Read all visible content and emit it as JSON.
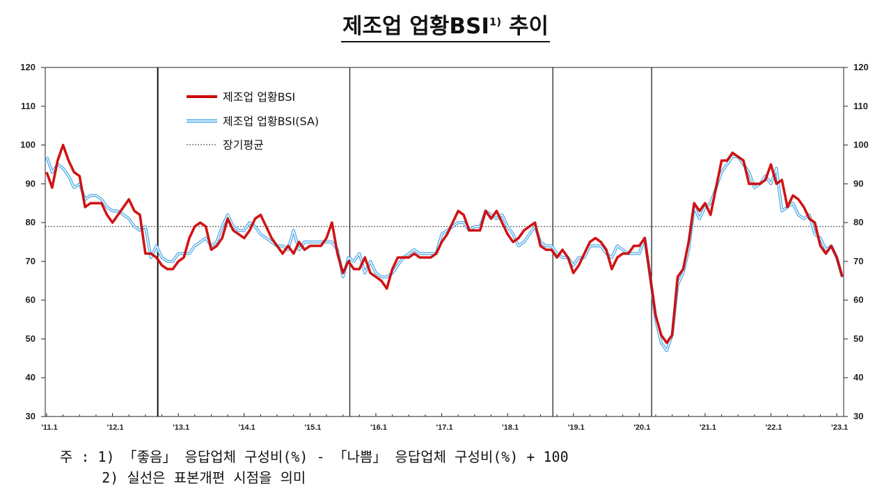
{
  "title": {
    "main": "제조업 업황BSI",
    "superscript": "1)",
    "suffix": " 추이"
  },
  "notes": {
    "line1": "주 : 1) 「좋음」 응답업체 구성비(%) - 「나쁨」 응답업체 구성비(%) + 100",
    "line2": "     2) 실선은 표본개편 시점을 의미"
  },
  "chart_data": {
    "type": "line",
    "title": "제조업 업황BSI 추이",
    "xlabel": "",
    "ylabel": "",
    "ylim": [
      30,
      120
    ],
    "yticks": [
      30,
      40,
      50,
      60,
      70,
      80,
      90,
      100,
      110,
      120
    ],
    "secondary_y": true,
    "x_range": [
      "'11.1",
      "'23.1"
    ],
    "x_ticks": [
      "'11.1",
      "'12.1",
      "'13.1",
      "'14.1",
      "'15.1",
      "'16.1",
      "'17.1",
      "'18.1",
      "'19.1",
      "'20.1",
      "'21.1",
      "'22.1",
      "'23.1"
    ],
    "legend_position": "top-left",
    "grid": false,
    "reference_line": {
      "name": "장기평균",
      "value": 79,
      "style": "dotted",
      "color": "#333333"
    },
    "vertical_lines_label": "표본개편 시점",
    "vertical_lines_x_month_index": [
      20,
      55,
      92,
      110
    ],
    "series": [
      {
        "name": "제조업 업황BSI",
        "color": "#cc0000",
        "style": "thick",
        "values": [
          93,
          89,
          96,
          100,
          96,
          93,
          92,
          84,
          85,
          85,
          85,
          82,
          80,
          82,
          84,
          86,
          83,
          82,
          72,
          72,
          71,
          69,
          68,
          68,
          70,
          71,
          76,
          79,
          80,
          79,
          73,
          74,
          76,
          81,
          78,
          77,
          76,
          78,
          81,
          82,
          79,
          76,
          74,
          72,
          74,
          72,
          75,
          73,
          74,
          74,
          74,
          76,
          80,
          72,
          67,
          70,
          68,
          68,
          71,
          67,
          66,
          65,
          63,
          68,
          71,
          71,
          71,
          72,
          71,
          71,
          71,
          72,
          75,
          77,
          80,
          83,
          82,
          78,
          78,
          78,
          83,
          81,
          83,
          80,
          77,
          75,
          76,
          78,
          79,
          80,
          74,
          73,
          73,
          71,
          73,
          71,
          67,
          69,
          72,
          75,
          76,
          75,
          73,
          68,
          71,
          72,
          72,
          74,
          74,
          76,
          66,
          56,
          51,
          49,
          51,
          66,
          68,
          75,
          85,
          83,
          85,
          82,
          89,
          96,
          96,
          98,
          97,
          96,
          90,
          90,
          90,
          91,
          95,
          90,
          91,
          84,
          87,
          86,
          84,
          81,
          80,
          74,
          72,
          74,
          71,
          66
        ]
      },
      {
        "name": "제조업 업황BSI(SA)",
        "color": "#5aaee6",
        "style": "double",
        "values": [
          97,
          93,
          95,
          94,
          92,
          89,
          90,
          86,
          87,
          87,
          86,
          84,
          83,
          83,
          82,
          81,
          79,
          78,
          79,
          71,
          74,
          71,
          70,
          70,
          72,
          72,
          72,
          74,
          75,
          76,
          74,
          75,
          79,
          82,
          79,
          78,
          78,
          80,
          79,
          77,
          76,
          75,
          74,
          74,
          73,
          78,
          73,
          75,
          75,
          75,
          75,
          75,
          75,
          73,
          66,
          71,
          70,
          72,
          67,
          70,
          67,
          66,
          66,
          67,
          69,
          71,
          72,
          73,
          72,
          72,
          72,
          72,
          77,
          78,
          79,
          80,
          80,
          78,
          79,
          79,
          83,
          82,
          81,
          82,
          79,
          77,
          74,
          75,
          77,
          79,
          75,
          74,
          74,
          72,
          71,
          71,
          69,
          71,
          71,
          74,
          74,
          74,
          72,
          71,
          74,
          73,
          72,
          72,
          72,
          76,
          66,
          55,
          49,
          47,
          51,
          64,
          67,
          73,
          84,
          81,
          84,
          85,
          89,
          93,
          95,
          97,
          97,
          95,
          93,
          89,
          90,
          92,
          90,
          94,
          83,
          84,
          85,
          82,
          81,
          82,
          77,
          76,
          73,
          74,
          71,
          66
        ]
      }
    ]
  }
}
